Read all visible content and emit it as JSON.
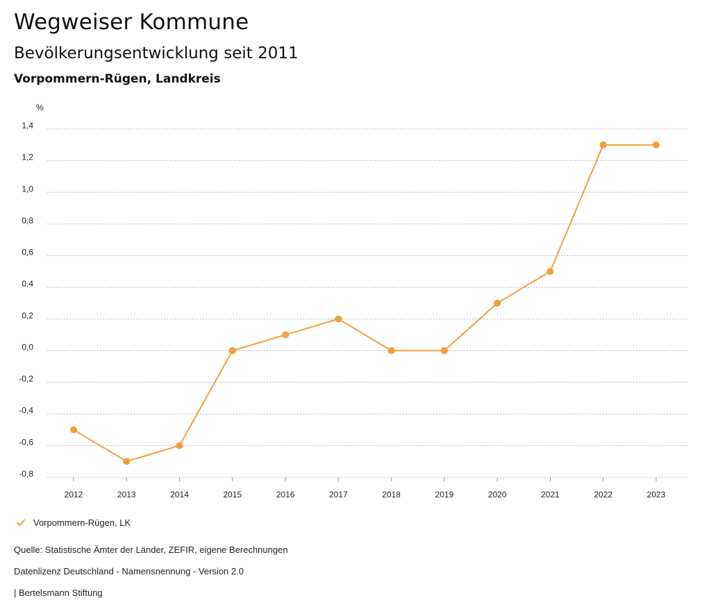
{
  "header": {
    "title": "Wegweiser Kommune",
    "subtitle": "Bevölkerungsentwicklung seit 2011",
    "region": "Vorpommern-Rügen, Landkreis"
  },
  "legend": {
    "label": "Vorpommern-Rügen, LK",
    "color": "#F0A03A"
  },
  "footer": {
    "source": "Quelle: Statistische Ämter der Länder, ZEFIR, eigene Berechnungen",
    "license": "Datenlizenz Deutschland - Namensnennung - Version 2.0",
    "brand": "| Bertelsmann Stiftung"
  },
  "chart_data": {
    "type": "line",
    "ylabel": "%",
    "xlabel": "",
    "categories": [
      "2012",
      "2013",
      "2014",
      "2015",
      "2016",
      "2017",
      "2018",
      "2019",
      "2020",
      "2021",
      "2022",
      "2023"
    ],
    "series": [
      {
        "name": "Vorpommern-Rügen, LK",
        "color": "#F0A03A",
        "values": [
          -0.5,
          -0.7,
          -0.6,
          0.0,
          0.1,
          0.2,
          0.0,
          0.0,
          0.3,
          0.5,
          1.3,
          1.3
        ]
      }
    ],
    "ylim": [
      -0.8,
      1.4
    ],
    "yticks": [
      1.4,
      1.2,
      1.0,
      0.8,
      0.6,
      0.4,
      0.2,
      0.0,
      -0.2,
      -0.4,
      -0.6,
      -0.8
    ],
    "ytick_labels": [
      "1,4",
      "1,2",
      "1,0",
      "0,8",
      "0,6",
      "0,4",
      "0,2",
      "0,0",
      "-0,2",
      "-0,4",
      "-0,6",
      "-0,8"
    ],
    "grid": true
  }
}
